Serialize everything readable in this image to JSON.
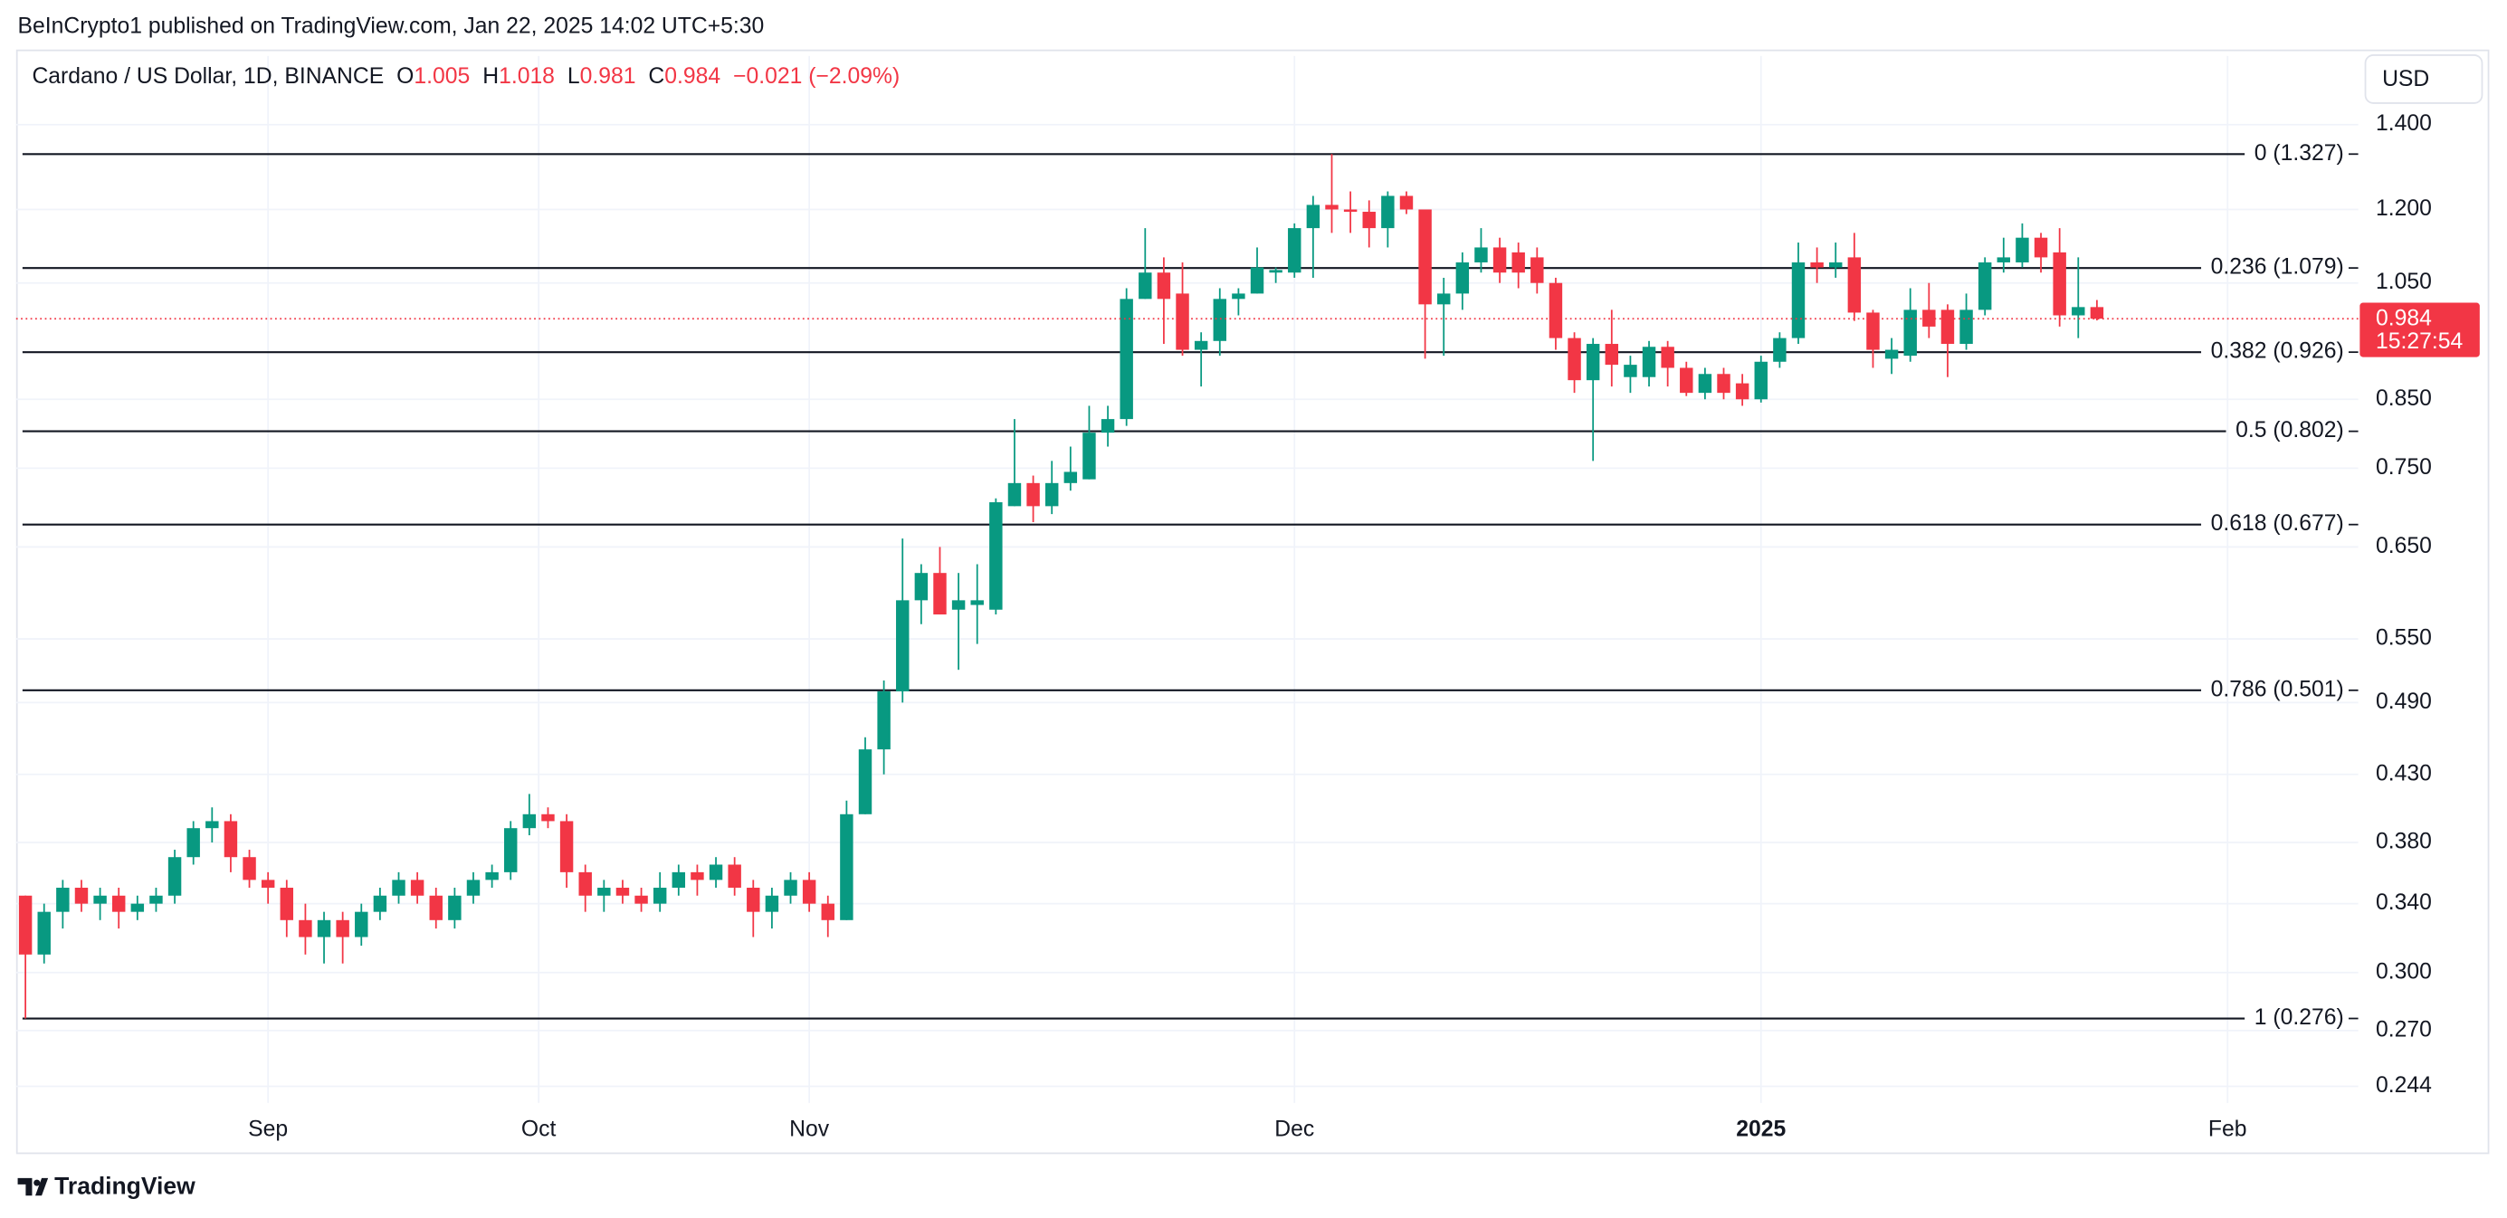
{
  "header": "BeInCrypto1 published on TradingView.com, Jan 22, 2025 14:02 UTC+5:30",
  "footer": "TradingView",
  "chart_data": {
    "type": "candlestick",
    "title": "Cardano / US Dollar, 1D, BINANCE",
    "legend": {
      "o_label": "O",
      "open": 1.005,
      "h_label": "H",
      "high": 1.018,
      "l_label": "L",
      "low": 0.981,
      "c_label": "C",
      "close": 0.984,
      "change": "−0.021 (−2.09%)"
    },
    "currency": "USD",
    "last_price": 0.984,
    "countdown": "15:27:54",
    "up_color": "#089981",
    "down_color": "#f23645",
    "log_scale": true,
    "grid": true,
    "ylim": [
      0.217,
      1.586
    ],
    "xlim": [
      -0.5,
      125
    ],
    "yticks": [
      {
        "value": 1.4,
        "label": "1.400"
      },
      {
        "value": 1.2,
        "label": "1.200"
      },
      {
        "value": 1.05,
        "label": "1.050"
      },
      {
        "value": 0.85,
        "label": "0.850"
      },
      {
        "value": 0.75,
        "label": "0.750"
      },
      {
        "value": 0.65,
        "label": "0.650"
      },
      {
        "value": 0.55,
        "label": "0.550"
      },
      {
        "value": 0.49,
        "label": "0.490"
      },
      {
        "value": 0.43,
        "label": "0.430"
      },
      {
        "value": 0.38,
        "label": "0.380"
      },
      {
        "value": 0.34,
        "label": "0.340"
      },
      {
        "value": 0.3,
        "label": "0.300"
      },
      {
        "value": 0.27,
        "label": "0.270"
      },
      0.244
    ],
    "xticks": [
      {
        "value": 13,
        "label": "Sep"
      },
      {
        "value": 27.5,
        "label": "Oct"
      },
      {
        "value": 42,
        "label": "Nov"
      },
      {
        "value": 68,
        "label": "Dec"
      },
      {
        "value": 93,
        "label": "2025"
      },
      {
        "value": 118,
        "label": "Feb"
      }
    ],
    "fib_levels": [
      {
        "label": "0 (1.327)",
        "value": 1.327
      },
      {
        "label": "0.236 (1.079)",
        "value": 1.079
      },
      {
        "label": "0.382 (0.926)",
        "value": 0.926
      },
      {
        "label": "0.5 (0.802)",
        "value": 0.802
      },
      {
        "label": "0.618 (0.677)",
        "value": 0.677
      },
      {
        "label": "0.786 (0.501)",
        "value": 0.501
      },
      {
        "label": "1 (0.276)",
        "value": 0.276
      }
    ],
    "open": [
      0.345,
      0.31,
      0.335,
      0.35,
      0.34,
      0.345,
      0.335,
      0.34,
      0.345,
      0.37,
      0.39,
      0.395,
      0.37,
      0.355,
      0.35,
      0.33,
      0.32,
      0.33,
      0.32,
      0.335,
      0.345,
      0.355,
      0.345,
      0.33,
      0.345,
      0.355,
      0.36,
      0.39,
      0.4,
      0.395,
      0.36,
      0.345,
      0.35,
      0.345,
      0.34,
      0.35,
      0.36,
      0.355,
      0.365,
      0.35,
      0.335,
      0.345,
      0.355,
      0.34,
      0.33,
      0.4,
      0.45,
      0.5,
      0.59,
      0.62,
      0.58,
      0.585,
      0.58,
      0.7,
      0.73,
      0.7,
      0.73,
      0.735,
      0.8,
      0.82,
      1.02,
      1.07,
      1.03,
      0.93,
      0.945,
      1.02,
      1.03,
      1.07,
      1.07,
      1.16,
      1.21,
      1.2,
      1.195,
      1.16,
      1.23,
      1.2,
      1.01,
      1.03,
      1.09,
      1.12,
      1.11,
      1.1,
      1.05,
      0.95,
      0.88,
      0.94,
      0.885,
      0.885,
      0.935,
      0.9,
      0.86,
      0.89,
      0.875,
      0.85,
      0.91,
      0.95,
      1.09,
      1.08,
      1.1,
      0.995,
      0.915,
      0.92,
      1.0,
      1.0,
      0.94,
      1.0,
      1.09,
      1.09,
      1.14,
      1.11,
      0.99,
      1.005
    ],
    "high": [
      0.345,
      0.34,
      0.355,
      0.355,
      0.35,
      0.35,
      0.345,
      0.35,
      0.375,
      0.395,
      0.405,
      0.4,
      0.375,
      0.36,
      0.355,
      0.34,
      0.335,
      0.335,
      0.34,
      0.35,
      0.36,
      0.36,
      0.35,
      0.35,
      0.36,
      0.365,
      0.395,
      0.415,
      0.405,
      0.4,
      0.365,
      0.355,
      0.355,
      0.35,
      0.36,
      0.365,
      0.365,
      0.37,
      0.37,
      0.355,
      0.35,
      0.36,
      0.36,
      0.345,
      0.41,
      0.46,
      0.51,
      0.66,
      0.63,
      0.65,
      0.62,
      0.63,
      0.71,
      0.82,
      0.74,
      0.76,
      0.78,
      0.84,
      0.84,
      1.04,
      1.16,
      1.1,
      1.09,
      0.96,
      1.04,
      1.04,
      1.12,
      1.08,
      1.17,
      1.23,
      1.327,
      1.24,
      1.22,
      1.24,
      1.24,
      1.2,
      1.06,
      1.11,
      1.16,
      1.14,
      1.13,
      1.12,
      1.06,
      0.96,
      0.95,
      1.0,
      0.92,
      0.945,
      0.945,
      0.91,
      0.9,
      0.9,
      0.89,
      0.92,
      0.96,
      1.13,
      1.12,
      1.13,
      1.15,
      1.0,
      0.95,
      1.04,
      1.05,
      1.01,
      1.03,
      1.1,
      1.14,
      1.17,
      1.15,
      1.16,
      1.1,
      1.018
    ],
    "low": [
      0.276,
      0.305,
      0.325,
      0.335,
      0.33,
      0.325,
      0.33,
      0.335,
      0.34,
      0.365,
      0.38,
      0.36,
      0.35,
      0.34,
      0.32,
      0.31,
      0.305,
      0.305,
      0.315,
      0.33,
      0.34,
      0.34,
      0.325,
      0.325,
      0.34,
      0.35,
      0.355,
      0.385,
      0.39,
      0.35,
      0.335,
      0.335,
      0.34,
      0.335,
      0.335,
      0.345,
      0.345,
      0.35,
      0.345,
      0.32,
      0.325,
      0.34,
      0.335,
      0.32,
      0.33,
      0.4,
      0.43,
      0.49,
      0.565,
      0.575,
      0.52,
      0.545,
      0.575,
      0.7,
      0.68,
      0.69,
      0.72,
      0.735,
      0.78,
      0.81,
      1.02,
      0.94,
      0.92,
      0.87,
      0.92,
      0.99,
      1.03,
      1.05,
      1.06,
      1.06,
      1.15,
      1.15,
      1.12,
      1.12,
      1.19,
      0.915,
      0.92,
      1.0,
      1.07,
      1.05,
      1.04,
      1.03,
      0.93,
      0.86,
      0.76,
      0.87,
      0.86,
      0.87,
      0.87,
      0.855,
      0.85,
      0.85,
      0.84,
      0.845,
      0.9,
      0.94,
      1.05,
      1.06,
      0.98,
      0.9,
      0.89,
      0.91,
      0.95,
      0.885,
      0.93,
      0.99,
      1.07,
      1.08,
      1.07,
      0.97,
      0.95,
      0.981
    ],
    "close": [
      0.31,
      0.335,
      0.35,
      0.34,
      0.345,
      0.335,
      0.34,
      0.345,
      0.37,
      0.39,
      0.395,
      0.37,
      0.355,
      0.35,
      0.33,
      0.32,
      0.33,
      0.32,
      0.335,
      0.345,
      0.355,
      0.345,
      0.33,
      0.345,
      0.355,
      0.36,
      0.39,
      0.4,
      0.395,
      0.36,
      0.345,
      0.35,
      0.345,
      0.34,
      0.35,
      0.36,
      0.355,
      0.365,
      0.35,
      0.335,
      0.345,
      0.355,
      0.34,
      0.33,
      0.4,
      0.45,
      0.5,
      0.59,
      0.62,
      0.575,
      0.59,
      0.59,
      0.705,
      0.73,
      0.7,
      0.73,
      0.745,
      0.8,
      0.82,
      1.02,
      1.07,
      1.02,
      0.93,
      0.945,
      1.02,
      1.03,
      1.08,
      1.075,
      1.16,
      1.21,
      1.2,
      1.195,
      1.16,
      1.23,
      1.2,
      1.01,
      1.03,
      1.09,
      1.12,
      1.07,
      1.07,
      1.05,
      0.95,
      0.88,
      0.94,
      0.905,
      0.905,
      0.935,
      0.9,
      0.86,
      0.89,
      0.86,
      0.85,
      0.91,
      0.95,
      1.09,
      1.08,
      1.09,
      0.995,
      0.93,
      0.93,
      1.0,
      0.97,
      0.94,
      1.0,
      1.09,
      1.1,
      1.14,
      1.1,
      0.99,
      1.005,
      0.984
    ]
  }
}
